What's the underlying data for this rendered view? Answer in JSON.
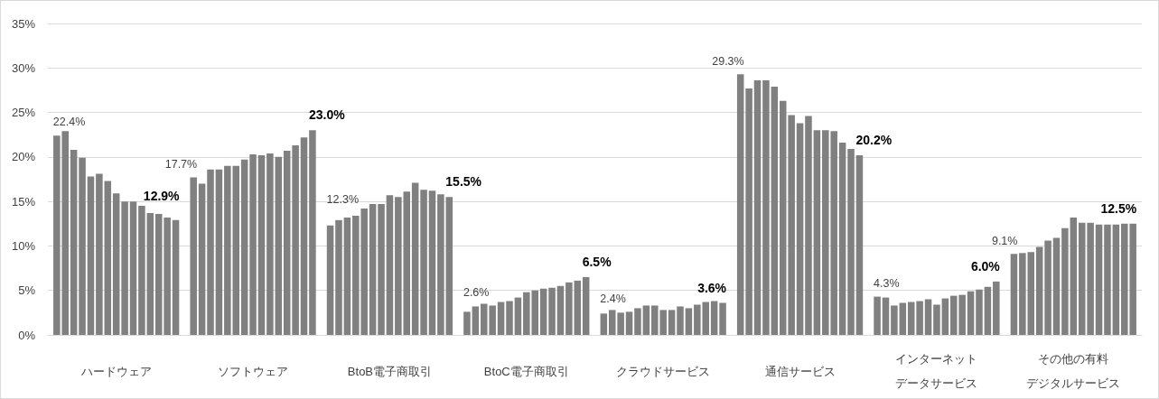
{
  "chart_data": {
    "type": "bar",
    "categories": [
      "ハードウェア",
      "ソフトウェア",
      "BtoB電子商取引",
      "BtoC電子商取引",
      "クラウドサービス",
      "通信サービス",
      "インターネットデータサービス",
      "その他の有料デジタルサービス"
    ],
    "series": [
      {
        "color": "#808080",
        "values": [
          22.4,
          17.7,
          12.3,
          2.6,
          2.4,
          29.3,
          4.3,
          9.1
        ],
        "value_labels": [
          "22.4%",
          "17.7%",
          "12.3%",
          "2.6%",
          "2.4%",
          "29.3%",
          "4.3%",
          "9.1%"
        ]
      },
      {
        "color": "#808080",
        "values": [
          22.9,
          17.0,
          12.9,
          3.2,
          2.8,
          27.7,
          4.2,
          9.2
        ]
      },
      {
        "color": "#808080",
        "values": [
          20.8,
          18.6,
          13.2,
          3.5,
          2.5,
          28.6,
          3.3,
          9.3
        ]
      },
      {
        "color": "#808080",
        "values": [
          19.9,
          18.6,
          13.4,
          3.3,
          2.6,
          28.6,
          3.6,
          9.9
        ]
      },
      {
        "color": "#808080",
        "values": [
          17.8,
          19.0,
          14.2,
          3.7,
          3.0,
          27.9,
          3.7,
          10.6
        ]
      },
      {
        "color": "#808080",
        "values": [
          18.1,
          19.0,
          14.7,
          3.8,
          3.3,
          26.3,
          3.8,
          10.9
        ]
      },
      {
        "color": "#808080",
        "values": [
          17.3,
          19.7,
          14.7,
          4.2,
          3.3,
          24.7,
          4.0,
          12.0
        ]
      },
      {
        "color": "#808080",
        "values": [
          15.9,
          20.3,
          15.7,
          4.8,
          2.8,
          23.8,
          3.4,
          13.2
        ]
      },
      {
        "color": "#808080",
        "values": [
          15.0,
          20.2,
          15.5,
          5.0,
          2.8,
          24.6,
          4.1,
          12.6
        ]
      },
      {
        "color": "#808080",
        "values": [
          15.0,
          20.4,
          16.1,
          5.2,
          3.2,
          23.0,
          4.4,
          12.6
        ]
      },
      {
        "color": "#808080",
        "values": [
          14.5,
          20.0,
          17.1,
          5.3,
          3.0,
          23.0,
          4.5,
          12.4
        ]
      },
      {
        "color": "#808080",
        "values": [
          13.7,
          20.7,
          16.3,
          5.5,
          3.4,
          22.9,
          4.9,
          12.4
        ]
      },
      {
        "color": "#808080",
        "values": [
          13.6,
          21.3,
          16.2,
          5.9,
          3.7,
          21.6,
          5.1,
          12.4
        ]
      },
      {
        "color": "#808080",
        "values": [
          13.2,
          22.2,
          15.8,
          6.1,
          3.8,
          20.9,
          5.4,
          12.5
        ]
      },
      {
        "color": "#808080",
        "values": [
          12.9,
          23.0,
          15.5,
          6.5,
          3.6,
          20.2,
          6.0,
          12.5
        ],
        "value_labels": [
          "12.9%",
          "23.0%",
          "15.5%",
          "6.5%",
          "3.6%",
          "20.2%",
          "6.0%",
          "12.5%"
        ]
      }
    ],
    "ylim": [
      0,
      35
    ],
    "yticks": [
      {
        "value": 0,
        "label": "0%"
      },
      {
        "value": 5,
        "label": "5%"
      },
      {
        "value": 10,
        "label": "10%"
      },
      {
        "value": 15,
        "label": "15%"
      },
      {
        "value": 20,
        "label": "20%"
      },
      {
        "value": 25,
        "label": "25%"
      },
      {
        "value": 30,
        "label": "30%"
      },
      {
        "value": 35,
        "label": "35%"
      }
    ],
    "grid": "y"
  }
}
